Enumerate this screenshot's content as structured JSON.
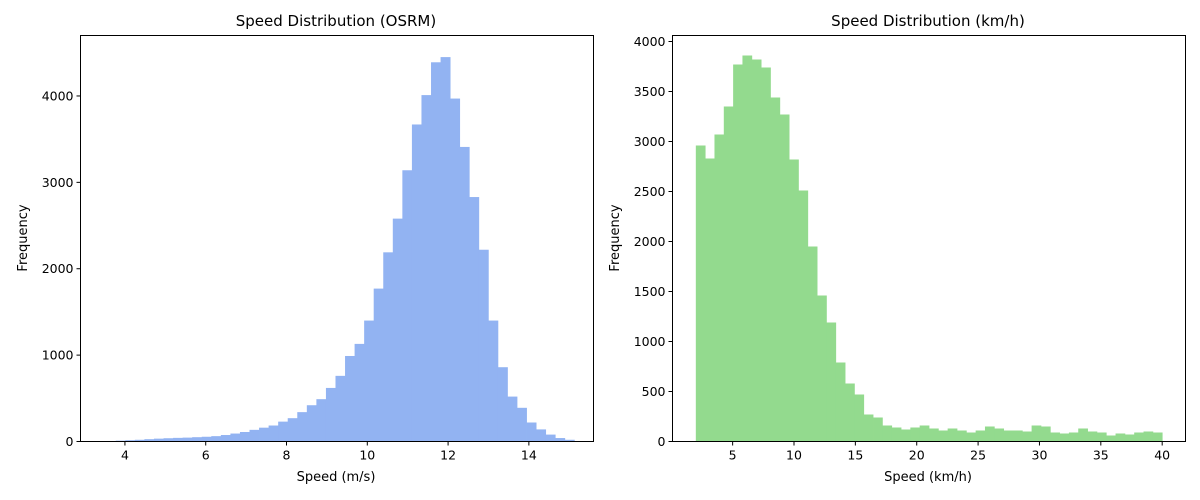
{
  "chart_data": [
    {
      "type": "bar",
      "title": "Speed Distribution (OSRM)",
      "xlabel": "Speed (m/s)",
      "ylabel": "Frequency",
      "xlim": [
        2.9,
        15.6
      ],
      "ylim": [
        0,
        4700
      ],
      "xticks": [
        4,
        6,
        8,
        10,
        12,
        14
      ],
      "yticks": [
        0,
        1000,
        2000,
        3000,
        4000
      ],
      "color": "#92b3f2",
      "bin_start": 3.3,
      "bin_width": 0.2365,
      "grid": false,
      "values": [
        3,
        6,
        10,
        15,
        20,
        27,
        33,
        38,
        42,
        45,
        50,
        55,
        62,
        75,
        92,
        110,
        135,
        160,
        185,
        230,
        270,
        340,
        420,
        490,
        620,
        760,
        990,
        1130,
        1400,
        1770,
        2190,
        2580,
        3140,
        3670,
        4010,
        4390,
        4450,
        3970,
        3410,
        2830,
        2220,
        1400,
        860,
        520,
        390,
        220,
        140,
        80,
        40,
        20
      ]
    },
    {
      "type": "bar",
      "title": "Speed Distribution (km/h)",
      "xlabel": "Speed (km/h)",
      "ylabel": "Frequency",
      "xlim": [
        0.1,
        41.9
      ],
      "ylim": [
        0,
        4060
      ],
      "xticks": [
        5,
        10,
        15,
        20,
        25,
        30,
        35,
        40
      ],
      "yticks": [
        0,
        500,
        1000,
        1500,
        2000,
        2500,
        3000,
        3500,
        4000
      ],
      "color": "#93da8e",
      "bin_start": 2.0,
      "bin_width": 0.76,
      "grid": false,
      "values": [
        2960,
        2830,
        3070,
        3350,
        3770,
        3860,
        3820,
        3740,
        3440,
        3270,
        2820,
        2510,
        1950,
        1460,
        1190,
        790,
        580,
        470,
        270,
        240,
        160,
        140,
        120,
        140,
        160,
        130,
        110,
        130,
        110,
        90,
        110,
        150,
        130,
        110,
        110,
        100,
        160,
        150,
        90,
        80,
        90,
        130,
        100,
        90,
        60,
        80,
        70,
        90,
        100,
        90
      ]
    }
  ]
}
